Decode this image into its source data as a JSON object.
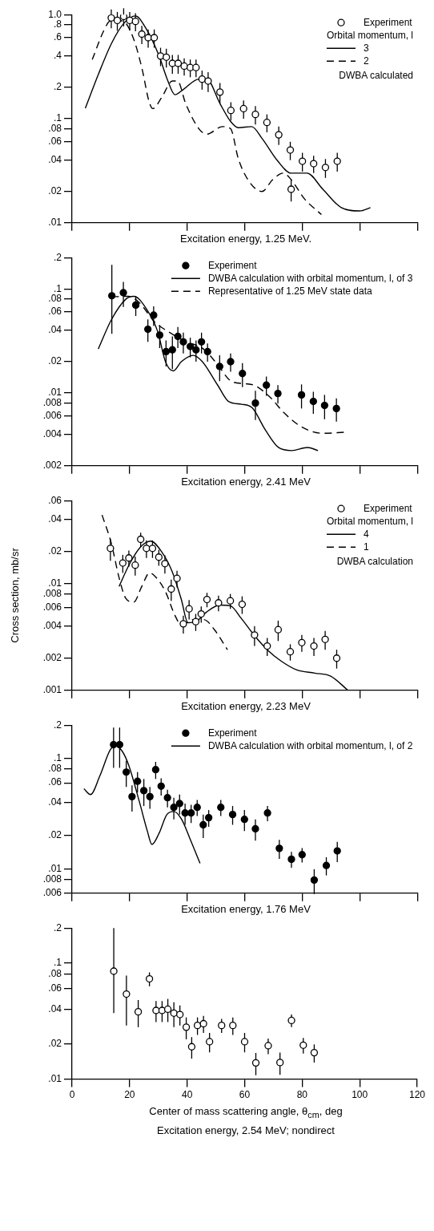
{
  "chart_data": [
    {
      "type": "scatter",
      "title": "Excitation energy, 1.25 MeV.",
      "legend_title": "Orbital momentum, l",
      "annotations": [
        "DWBA calculated"
      ],
      "log": "y",
      "legend": "top right",
      "tick_labels": "y",
      "xlim": [
        0,
        120
      ],
      "xticks": [
        0,
        20,
        40,
        60,
        80,
        100,
        120
      ],
      "ylim": [
        0.01,
        1.0
      ],
      "yticks": [
        {
          "value": 0.01,
          "label": ".01"
        },
        {
          "value": 0.02,
          "label": ".02"
        },
        {
          "value": 0.04,
          "label": ".04"
        },
        {
          "value": 0.06,
          "label": ".06"
        },
        {
          "value": 0.08,
          "label": ".08"
        },
        {
          "value": 0.1,
          "label": ".1"
        },
        {
          "value": 0.2,
          "label": ".2"
        },
        {
          "value": 0.4,
          "label": ".4"
        },
        {
          "value": 0.6,
          "label": ".6"
        },
        {
          "value": 0.8,
          "label": ".8"
        },
        {
          "value": 1.0,
          "label": "1.0"
        }
      ],
      "series": [
        {
          "name": "Experiment",
          "type": "scatter",
          "marker": "circle",
          "color": "#ffffff",
          "x": [
            13.6,
            15.7,
            17.9,
            20.0,
            22.0,
            24.2,
            26.4,
            28.5,
            30.7,
            32.7,
            34.8,
            36.8,
            38.9,
            41.0,
            43.0,
            45.1,
            47.2,
            51.3,
            55.1,
            59.5,
            63.6,
            67.6,
            71.7,
            75.7,
            76.0,
            79.9,
            83.8,
            87.9,
            92.0
          ],
          "values": [
            0.93,
            0.88,
            0.96,
            0.88,
            0.86,
            0.65,
            0.6,
            0.6,
            0.4,
            0.39,
            0.34,
            0.34,
            0.32,
            0.31,
            0.31,
            0.24,
            0.23,
            0.18,
            0.12,
            0.125,
            0.11,
            0.092,
            0.07,
            0.05,
            0.021,
            0.039,
            0.037,
            0.034,
            0.039
          ],
          "errors": [
            0.19,
            0.18,
            0.19,
            0.18,
            0.17,
            0.13,
            0.12,
            0.12,
            0.08,
            0.08,
            0.07,
            0.07,
            0.06,
            0.06,
            0.06,
            0.05,
            0.05,
            0.04,
            0.024,
            0.025,
            0.022,
            0.018,
            0.014,
            0.01,
            0.005,
            0.008,
            0.007,
            0.007,
            0.008
          ]
        },
        {
          "name": "3",
          "type": "line",
          "line_style": "solid",
          "color": "#000000",
          "x": [
            4.6,
            9.2,
            13.7,
            17.9,
            22,
            25.6,
            30.2,
            33,
            35.7,
            38.5,
            44,
            46.7,
            51.3,
            55,
            57.7,
            62.3,
            66,
            71.4,
            76,
            81.5,
            87,
            93.4,
            99.8,
            103.5
          ],
          "values": [
            0.126,
            0.27,
            0.53,
            0.82,
            0.97,
            0.74,
            0.4,
            0.24,
            0.17,
            0.19,
            0.24,
            0.24,
            0.14,
            0.094,
            0.082,
            0.084,
            0.064,
            0.039,
            0.03,
            0.03,
            0.021,
            0.014,
            0.013,
            0.014
          ]
        },
        {
          "name": "2",
          "type": "line",
          "line_style": "dashed",
          "color": "#000000",
          "x": [
            7,
            11,
            13.3,
            17.4,
            21,
            24.3,
            26.6,
            28,
            31.1,
            34.8,
            36.6,
            39.4,
            44,
            46.7,
            52.2,
            55,
            57.7,
            61.4,
            65.9,
            69.6,
            73.3,
            76,
            80.6,
            86.5
          ],
          "values": [
            0.37,
            0.7,
            0.87,
            0.87,
            0.62,
            0.3,
            0.15,
            0.125,
            0.16,
            0.23,
            0.23,
            0.14,
            0.08,
            0.071,
            0.084,
            0.08,
            0.041,
            0.025,
            0.02,
            0.026,
            0.03,
            0.026,
            0.017,
            0.012
          ]
        }
      ]
    },
    {
      "type": "scatter",
      "title": "Excitation energy, 2.41 MeV",
      "log": "y",
      "legend": "top right",
      "tick_labels": "y",
      "xlim": [
        0,
        120
      ],
      "xticks": [
        0,
        20,
        40,
        60,
        80,
        100,
        120
      ],
      "ylim": [
        0.002,
        0.2
      ],
      "yticks": [
        {
          "value": 0.002,
          "label": ".002"
        },
        {
          "value": 0.004,
          "label": ".004"
        },
        {
          "value": 0.006,
          "label": ".006"
        },
        {
          "value": 0.008,
          "label": ".008"
        },
        {
          "value": 0.01,
          "label": ".01"
        },
        {
          "value": 0.02,
          "label": ".02"
        },
        {
          "value": 0.04,
          "label": ".04"
        },
        {
          "value": 0.06,
          "label": ".06"
        },
        {
          "value": 0.08,
          "label": ".08"
        },
        {
          "value": 0.1,
          "label": ".1"
        },
        {
          "value": 0.2,
          "label": ".2"
        }
      ],
      "series": [
        {
          "name": "Experiment",
          "type": "scatter",
          "marker": "circle",
          "color": "#000000",
          "x": [
            13.8,
            17.8,
            22.1,
            26.3,
            28.3,
            30.4,
            32.6,
            34.8,
            36.7,
            38.6,
            41.0,
            43.0,
            44.9,
            47.0,
            51.2,
            55.0,
            59.1,
            63.6,
            67.4,
            71.4,
            79.6,
            83.7,
            87.6,
            91.7
          ],
          "values": [
            0.086,
            0.092,
            0.07,
            0.041,
            0.056,
            0.036,
            0.025,
            0.026,
            0.035,
            0.031,
            0.028,
            0.026,
            0.031,
            0.025,
            0.018,
            0.02,
            0.0154,
            0.008,
            0.0119,
            0.0099,
            0.0096,
            0.0083,
            0.0076,
            0.0071
          ],
          "errors": [
            [
              0.037,
              0.17
            ],
            0.025,
            0.015,
            0.01,
            0.012,
            0.009,
            0.007,
            0.009,
            0.008,
            0.007,
            0.006,
            0.006,
            0.007,
            0.005,
            0.005,
            0.004,
            0.004,
            0.0025,
            0.0025,
            0.002,
            0.0025,
            0.002,
            0.002,
            0.0018
          ]
        },
        {
          "name": "DWBA calculation with orbital momentum, l, of 3",
          "type": "line",
          "line_style": "solid",
          "color": "#000000",
          "x": [
            9.1,
            13.7,
            18.7,
            21.4,
            26,
            29.7,
            32.4,
            35.1,
            37.9,
            42,
            45.2,
            50.6,
            54.3,
            58.8,
            62.5,
            67.1,
            71.6,
            76.2,
            81.7,
            85.3
          ],
          "values": [
            0.0265,
            0.051,
            0.08,
            0.085,
            0.063,
            0.039,
            0.02,
            0.0163,
            0.02,
            0.023,
            0.02,
            0.0118,
            0.0083,
            0.0078,
            0.0072,
            0.0044,
            0.003,
            0.0028,
            0.003,
            0.0028
          ]
        },
        {
          "name": "Representative of 1.25 MeV state data",
          "type": "line",
          "line_style": "dashed",
          "color": "#000000",
          "x": [
            13.7,
            19.6,
            23.3,
            28.7,
            33.3,
            39.7,
            45.2,
            49.7,
            55.2,
            59.8,
            63.4,
            68.9,
            73.4,
            79.8,
            87.1,
            94.4
          ],
          "values": [
            0.084,
            0.085,
            0.074,
            0.048,
            0.039,
            0.031,
            0.027,
            0.02,
            0.013,
            0.0123,
            0.0118,
            0.009,
            0.0065,
            0.0047,
            0.0041,
            0.0042
          ]
        }
      ]
    },
    {
      "type": "scatter",
      "title": "Excitation energy, 2.23 MeV",
      "ylabel": "Cross section, mb/sr",
      "legend_title": "Orbital momentum, l",
      "annotations": [
        "DWBA calculation"
      ],
      "log": "y",
      "legend": "top right",
      "tick_labels": "y",
      "xlim": [
        0,
        120
      ],
      "xticks": [
        0,
        20,
        40,
        60,
        80,
        100,
        120
      ],
      "ylim": [
        0.001,
        0.06
      ],
      "yticks": [
        {
          "value": 0.001,
          "label": ".001"
        },
        {
          "value": 0.002,
          "label": ".002"
        },
        {
          "value": 0.004,
          "label": ".004"
        },
        {
          "value": 0.006,
          "label": ".006"
        },
        {
          "value": 0.008,
          "label": ".008"
        },
        {
          "value": 0.01,
          "label": ".01"
        },
        {
          "value": 0.02,
          "label": ".02"
        },
        {
          "value": 0.04,
          "label": ".04"
        },
        {
          "value": 0.06,
          "label": ".06"
        }
      ],
      "series": [
        {
          "name": "Experiment",
          "type": "scatter",
          "marker": "circle",
          "color": "#ffffff",
          "x": [
            13.3,
            17.6,
            19.7,
            21.9,
            23.8,
            25.8,
            27.9,
            30.1,
            32.2,
            36.4,
            34.4,
            38.6,
            40.6,
            42.9,
            44.8,
            46.8,
            50.8,
            54.9,
            59.0,
            63.3,
            67.7,
            71.5,
            75.7,
            79.7,
            83.9,
            87.8,
            91.8
          ],
          "values": [
            0.0214,
            0.0156,
            0.0174,
            0.0149,
            0.026,
            0.0214,
            0.0214,
            0.0177,
            0.0154,
            0.0112,
            0.0089,
            0.0042,
            0.0058,
            0.0044,
            0.0052,
            0.0071,
            0.0066,
            0.0069,
            0.0064,
            0.0033,
            0.0026,
            0.0037,
            0.0023,
            0.0028,
            0.0026,
            0.003,
            0.002
          ],
          "errors": [
            0.005,
            0.003,
            0.003,
            0.003,
            0.004,
            0.004,
            0.004,
            0.003,
            0.003,
            0.002,
            0.002,
            0.0008,
            0.0012,
            0.0008,
            0.0009,
            0.0011,
            0.0011,
            0.0011,
            0.0012,
            0.0007,
            0.0005,
            0.0008,
            0.0004,
            0.0005,
            0.0005,
            0.0006,
            0.0004
          ]
        },
        {
          "name": "4",
          "type": "line",
          "line_style": "solid",
          "color": "#000000",
          "x": [
            16.3,
            20,
            23.7,
            27.3,
            31,
            34.7,
            37.9,
            40.2,
            42.9,
            46.6,
            51.2,
            54.9,
            58.5,
            63.1,
            67.7,
            72.3,
            77.8,
            84.2,
            89.7,
            95.7
          ],
          "values": [
            0.0094,
            0.0154,
            0.022,
            0.025,
            0.02,
            0.013,
            0.0071,
            0.0043,
            0.0044,
            0.0054,
            0.0063,
            0.0062,
            0.0048,
            0.0033,
            0.0024,
            0.0019,
            0.00156,
            0.00145,
            0.00136,
            0.001
          ]
        },
        {
          "name": "1",
          "type": "line",
          "line_style": "dashed",
          "color": "#000000",
          "x": [
            10.4,
            13.6,
            16.3,
            18.6,
            21.4,
            24.1,
            26.9,
            29.2,
            32.4,
            35.6,
            37.9,
            42,
            45.7,
            49.4,
            53.9
          ],
          "values": [
            0.044,
            0.0239,
            0.0114,
            0.0073,
            0.0067,
            0.0093,
            0.0126,
            0.0114,
            0.0084,
            0.0051,
            0.0041,
            0.0046,
            0.0046,
            0.0037,
            0.0024
          ]
        }
      ]
    },
    {
      "type": "scatter",
      "title": "Excitation energy, 1.76 MeV",
      "log": "y",
      "legend": "top right",
      "tick_labels": "y",
      "xlim": [
        0,
        120
      ],
      "xticks": [
        0,
        20,
        40,
        60,
        80,
        100,
        120
      ],
      "ylim": [
        0.006,
        0.2
      ],
      "yticks": [
        {
          "value": 0.006,
          "label": ".006"
        },
        {
          "value": 0.008,
          "label": ".008"
        },
        {
          "value": 0.01,
          "label": ".01"
        },
        {
          "value": 0.02,
          "label": ".02"
        },
        {
          "value": 0.04,
          "label": ".04"
        },
        {
          "value": 0.06,
          "label": ".06"
        },
        {
          "value": 0.08,
          "label": ".08"
        },
        {
          "value": 0.1,
          "label": ".1"
        },
        {
          "value": 0.2,
          "label": ".2"
        }
      ],
      "series": [
        {
          "name": "Experiment",
          "type": "scatter",
          "marker": "circle",
          "color": "#000000",
          "x": [
            14.4,
            16.5,
            18.8,
            20.8,
            22.7,
            24.9,
            27.0,
            29.0,
            30.9,
            33.1,
            35.3,
            37.3,
            39.2,
            41.3,
            43.4,
            45.5,
            47.4,
            51.6,
            55.7,
            59.8,
            63.6,
            67.8,
            71.9,
            76.1,
            79.8,
            84.0,
            88.2,
            92.0
          ],
          "values": [
            0.133,
            0.133,
            0.075,
            0.045,
            0.062,
            0.051,
            0.045,
            0.079,
            0.056,
            0.044,
            0.036,
            0.039,
            0.032,
            0.032,
            0.036,
            0.025,
            0.029,
            0.036,
            0.031,
            0.028,
            0.023,
            0.032,
            0.0153,
            0.0122,
            0.0134,
            0.0079,
            0.0107,
            0.0145
          ],
          "errors": [
            [
              0.082,
              0.19
            ],
            [
              0.082,
              0.19
            ],
            0.02,
            0.012,
            0.013,
            0.014,
            0.01,
            0.014,
            0.01,
            0.008,
            0.008,
            0.008,
            0.007,
            0.006,
            0.006,
            0.006,
            0.005,
            0.006,
            0.006,
            0.006,
            0.005,
            0.005,
            0.003,
            0.002,
            0.002,
            0.002,
            0.002,
            0.003
          ]
        },
        {
          "name": "DWBA calculation with orbital momentum, l, of 2",
          "type": "line",
          "line_style": "solid",
          "color": "#000000",
          "x": [
            4.1,
            6.4,
            9.6,
            13.3,
            15.1,
            17.4,
            19.7,
            23.4,
            26.1,
            27.7,
            30.2,
            32.9,
            35.3,
            38,
            40.8,
            44.4
          ],
          "values": [
            0.053,
            0.047,
            0.069,
            0.12,
            0.13,
            0.116,
            0.086,
            0.04,
            0.022,
            0.0166,
            0.021,
            0.031,
            0.033,
            0.028,
            0.019,
            0.0112
          ]
        }
      ]
    },
    {
      "type": "scatter",
      "title": "Excitation energy, 2.54 MeV; nondirect",
      "xlabel": "Center of mass scattering angle, θ$_{cm}$, deg",
      "log": "y",
      "xlim": [
        0,
        120
      ],
      "xticks": [
        0,
        20,
        40,
        60,
        80,
        100,
        120
      ],
      "ylim": [
        0.01,
        0.2
      ],
      "yticks": [
        {
          "value": 0.01,
          "label": ".01"
        },
        {
          "value": 0.02,
          "label": ".02"
        },
        {
          "value": 0.04,
          "label": ".04"
        },
        {
          "value": 0.06,
          "label": ".06"
        },
        {
          "value": 0.08,
          "label": ".08"
        },
        {
          "value": 0.1,
          "label": ".1"
        },
        {
          "value": 0.2,
          "label": ".2"
        }
      ],
      "series": [
        {
          "type": "scatter",
          "marker": "circle",
          "color": "#ffffff",
          "x": [
            14.5,
            18.9,
            23.0,
            26.9,
            29.2,
            31.3,
            33.3,
            35.4,
            37.5,
            39.7,
            41.6,
            43.6,
            45.7,
            47.8,
            52.0,
            55.9,
            60.0,
            63.9,
            68.2,
            72.3,
            76.3,
            80.4,
            84.2
          ],
          "values": [
            0.085,
            0.054,
            0.038,
            0.073,
            0.039,
            0.039,
            0.04,
            0.037,
            0.036,
            0.028,
            0.019,
            0.029,
            0.03,
            0.021,
            0.029,
            0.029,
            0.021,
            0.0138,
            0.0194,
            0.0139,
            0.032,
            0.0196,
            0.0169
          ],
          "errors": [
            [
              0.037,
              0.2
            ],
            [
              0.029,
              0.078
            ],
            0.01,
            0.01,
            0.008,
            0.008,
            0.009,
            0.009,
            0.007,
            0.006,
            0.004,
            0.005,
            0.005,
            0.004,
            0.004,
            0.005,
            0.004,
            0.003,
            0.003,
            0.003,
            0.004,
            0.003,
            0.003
          ]
        }
      ]
    }
  ]
}
